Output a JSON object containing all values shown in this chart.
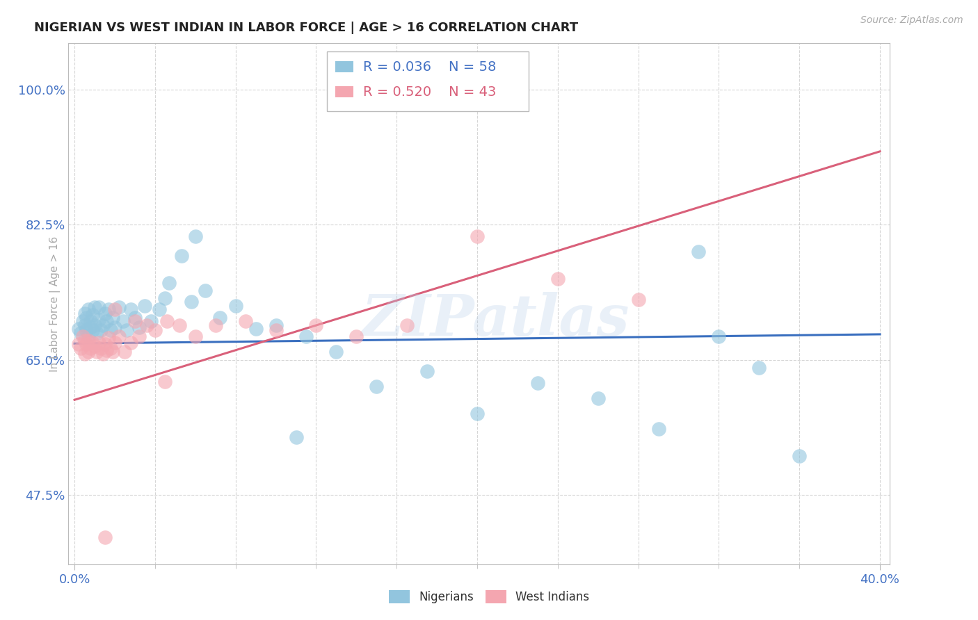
{
  "title": "NIGERIAN VS WEST INDIAN IN LABOR FORCE | AGE > 16 CORRELATION CHART",
  "source": "Source: ZipAtlas.com",
  "ylabel": "In Labor Force | Age > 16",
  "ytick_values": [
    0.475,
    0.65,
    0.825,
    1.0
  ],
  "ytick_labels": [
    "47.5%",
    "65.0%",
    "82.5%",
    "100.0%"
  ],
  "xlim": [
    -0.003,
    0.405
  ],
  "ylim": [
    0.385,
    1.06
  ],
  "legend_r_nigerian": "R = 0.036",
  "legend_n_nigerian": "N = 58",
  "legend_r_westindian": "R = 0.520",
  "legend_n_westindian": "N = 43",
  "nigerian_color": "#92c5de",
  "westindian_color": "#f4a6b0",
  "trendline_nigerian_color": "#3a6fbf",
  "trendline_westindian_color": "#d9607a",
  "watermark": "ZIPatlas",
  "background_color": "#ffffff",
  "grid_color": "#cccccc",
  "title_color": "#222222",
  "tick_label_color": "#4472c4",
  "legend_text_color_blue": "#4472c4",
  "legend_text_color_pink": "#d9607a",
  "nigerian_x": [
    0.002,
    0.003,
    0.004,
    0.005,
    0.005,
    0.006,
    0.006,
    0.007,
    0.007,
    0.008,
    0.008,
    0.009,
    0.009,
    0.01,
    0.01,
    0.011,
    0.012,
    0.012,
    0.013,
    0.014,
    0.015,
    0.016,
    0.017,
    0.018,
    0.019,
    0.02,
    0.022,
    0.024,
    0.026,
    0.028,
    0.03,
    0.032,
    0.035,
    0.038,
    0.042,
    0.047,
    0.053,
    0.058,
    0.065,
    0.072,
    0.08,
    0.09,
    0.1,
    0.115,
    0.13,
    0.15,
    0.175,
    0.2,
    0.23,
    0.26,
    0.29,
    0.32,
    0.34,
    0.36,
    0.045,
    0.06,
    0.11,
    0.31
  ],
  "nigerian_y": [
    0.69,
    0.685,
    0.7,
    0.695,
    0.71,
    0.688,
    0.705,
    0.68,
    0.715,
    0.692,
    0.7,
    0.688,
    0.708,
    0.695,
    0.718,
    0.685,
    0.702,
    0.718,
    0.688,
    0.695,
    0.71,
    0.7,
    0.715,
    0.688,
    0.705,
    0.692,
    0.718,
    0.7,
    0.688,
    0.715,
    0.705,
    0.692,
    0.72,
    0.7,
    0.715,
    0.75,
    0.785,
    0.725,
    0.74,
    0.705,
    0.72,
    0.69,
    0.695,
    0.68,
    0.66,
    0.615,
    0.635,
    0.58,
    0.62,
    0.6,
    0.56,
    0.68,
    0.64,
    0.525,
    0.73,
    0.81,
    0.55,
    0.79
  ],
  "westindian_x": [
    0.002,
    0.003,
    0.004,
    0.005,
    0.005,
    0.006,
    0.007,
    0.007,
    0.008,
    0.009,
    0.01,
    0.011,
    0.012,
    0.013,
    0.014,
    0.015,
    0.016,
    0.017,
    0.018,
    0.019,
    0.02,
    0.022,
    0.025,
    0.028,
    0.032,
    0.036,
    0.04,
    0.046,
    0.052,
    0.06,
    0.07,
    0.085,
    0.1,
    0.12,
    0.14,
    0.165,
    0.2,
    0.24,
    0.28,
    0.02,
    0.03,
    0.045,
    0.015
  ],
  "westindian_y": [
    0.67,
    0.665,
    0.68,
    0.675,
    0.658,
    0.67,
    0.66,
    0.675,
    0.665,
    0.672,
    0.668,
    0.66,
    0.672,
    0.665,
    0.658,
    0.67,
    0.662,
    0.678,
    0.665,
    0.66,
    0.672,
    0.68,
    0.66,
    0.672,
    0.68,
    0.695,
    0.688,
    0.7,
    0.695,
    0.68,
    0.695,
    0.7,
    0.688,
    0.695,
    0.68,
    0.695,
    0.81,
    0.755,
    0.728,
    0.715,
    0.7,
    0.622,
    0.42
  ]
}
